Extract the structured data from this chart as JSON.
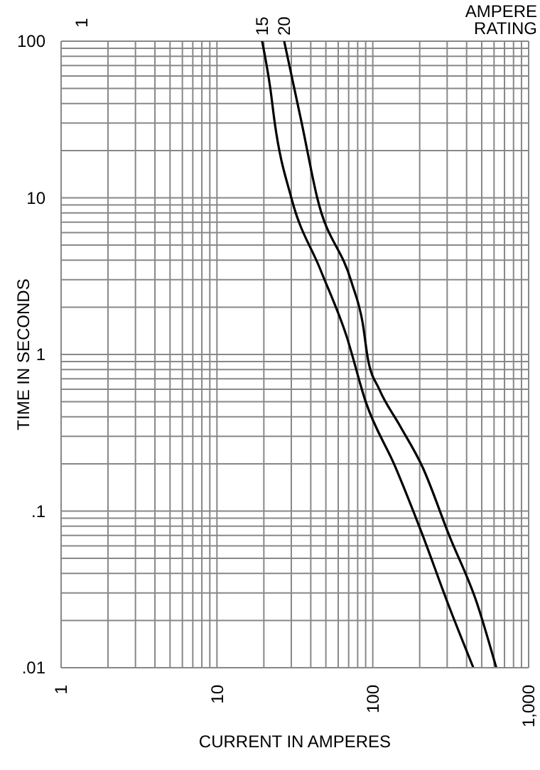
{
  "chart_data": {
    "type": "line",
    "xlabel": "CURRENT IN AMPERES",
    "ylabel": "TIME IN SECONDS",
    "log": "xy",
    "grid": true,
    "marker": "none",
    "line_style": "solid",
    "xlim": [
      1,
      1000
    ],
    "ylim": [
      0.01,
      100
    ],
    "xticks": [
      1,
      {
        "value": 2,
        "label": null
      },
      {
        "value": 3,
        "label": null
      },
      {
        "value": 4,
        "label": null
      },
      {
        "value": 5,
        "label": null
      },
      {
        "value": 6,
        "label": null
      },
      {
        "value": 7,
        "label": null
      },
      {
        "value": 8,
        "label": null
      },
      {
        "value": 9,
        "label": null
      },
      10,
      {
        "value": 20,
        "label": null
      },
      {
        "value": 30,
        "label": null
      },
      {
        "value": 40,
        "label": null
      },
      {
        "value": 50,
        "label": null
      },
      {
        "value": 60,
        "label": null
      },
      {
        "value": 70,
        "label": null
      },
      {
        "value": 80,
        "label": null
      },
      {
        "value": 90,
        "label": null
      },
      100,
      {
        "value": 200,
        "label": null
      },
      {
        "value": 300,
        "label": null
      },
      {
        "value": 400,
        "label": null
      },
      {
        "value": 500,
        "label": null
      },
      {
        "value": 600,
        "label": null
      },
      {
        "value": 700,
        "label": null
      },
      {
        "value": 800,
        "label": null
      },
      {
        "value": 900,
        "label": null
      },
      {
        "value": 1000,
        "label": "1,000"
      }
    ],
    "yticks": [
      {
        "value": 0.01,
        "label": ".01"
      },
      {
        "value": 0.02,
        "label": null
      },
      {
        "value": 0.03,
        "label": null
      },
      {
        "value": 0.04,
        "label": null
      },
      {
        "value": 0.05,
        "label": null
      },
      {
        "value": 0.06,
        "label": null
      },
      {
        "value": 0.07,
        "label": null
      },
      {
        "value": 0.08,
        "label": null
      },
      {
        "value": 0.09,
        "label": null
      },
      {
        "value": 0.1,
        "label": ".1"
      },
      {
        "value": 0.2,
        "label": null
      },
      {
        "value": 0.3,
        "label": null
      },
      {
        "value": 0.4,
        "label": null
      },
      {
        "value": 0.5,
        "label": null
      },
      {
        "value": 0.6,
        "label": null
      },
      {
        "value": 0.7,
        "label": null
      },
      {
        "value": 0.8,
        "label": null
      },
      {
        "value": 0.9,
        "label": null
      },
      1,
      {
        "value": 2,
        "label": null
      },
      {
        "value": 3,
        "label": null
      },
      {
        "value": 4,
        "label": null
      },
      {
        "value": 5,
        "label": null
      },
      {
        "value": 6,
        "label": null
      },
      {
        "value": 7,
        "label": null
      },
      {
        "value": 8,
        "label": null
      },
      {
        "value": 9,
        "label": null
      },
      10,
      {
        "value": 20,
        "label": null
      },
      {
        "value": 30,
        "label": null
      },
      {
        "value": 40,
        "label": null
      },
      {
        "value": 50,
        "label": null
      },
      {
        "value": 60,
        "label": null
      },
      {
        "value": 70,
        "label": null
      },
      {
        "value": 80,
        "label": null
      },
      {
        "value": 90,
        "label": null
      },
      100
    ],
    "series": [
      {
        "name": "15",
        "color": "#000000",
        "x": [
          19.5,
          22,
          23.5,
          30,
          46,
          68,
          90,
          140,
          209,
          302,
          442
        ],
        "values": [
          100,
          50,
          30,
          10,
          3.5,
          1.3,
          0.5,
          0.19,
          0.07,
          0.026,
          0.01
        ]
      },
      {
        "name": "20",
        "color": "#000000",
        "x": [
          27,
          35,
          44,
          73,
          86,
          93,
          110,
          147,
          209,
          309,
          465,
          620
        ],
        "values": [
          100,
          30,
          10,
          2.9,
          1.6,
          0.94,
          0.6,
          0.36,
          0.19,
          0.07,
          0.026,
          0.01
        ]
      }
    ],
    "annotations": [
      "1",
      "AMPERE RATING"
    ]
  }
}
